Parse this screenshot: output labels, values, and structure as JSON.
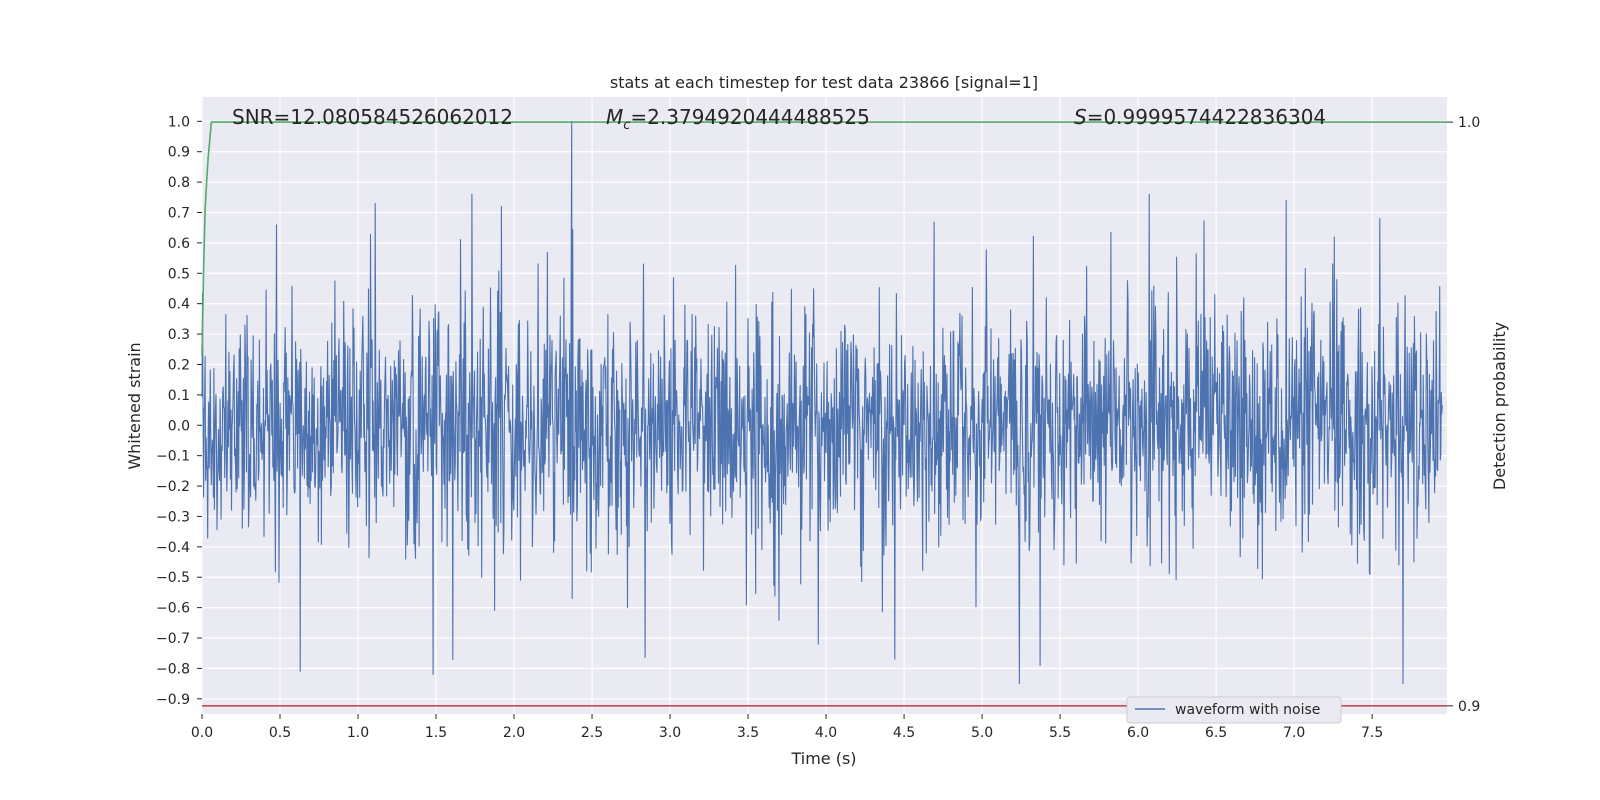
{
  "chart_data": {
    "type": "line",
    "title": "stats at each timestep for test data 23866 [signal=1]",
    "xlabel": "Time (s)",
    "ylabel": "Whitened strain",
    "ylabel_right": "Detection probability",
    "xlim": [
      0.0,
      7.98
    ],
    "ylim": [
      -0.95,
      1.08
    ],
    "ylim_right": [
      0.8986,
      1.0043
    ],
    "x_ticks": [
      "0.0",
      "0.5",
      "1.0",
      "1.5",
      "2.0",
      "2.5",
      "3.0",
      "3.5",
      "4.0",
      "4.5",
      "5.0",
      "5.5",
      "6.0",
      "6.5",
      "7.0",
      "7.5"
    ],
    "y_ticks": [
      "1.0",
      "0.9",
      "0.8",
      "0.7",
      "0.6",
      "0.5",
      "0.4",
      "0.3",
      "0.2",
      "0.1",
      "0.0",
      "−0.1",
      "−0.2",
      "−0.3",
      "−0.4",
      "−0.5",
      "−0.6",
      "−0.7",
      "−0.8",
      "−0.9"
    ],
    "y_ticks_right": [
      "1.0",
      "0.9"
    ],
    "grid": true,
    "legend": {
      "placement": "lower-right",
      "entries": [
        "waveform with noise"
      ]
    },
    "annotations": {
      "snr": "SNR=12.080584526062012",
      "mc_symbol": "M",
      "mc_sub": "c",
      "mc_value": "=2.3794920444488525",
      "s_symbol": "S",
      "s_value": "=0.9999574422836304"
    },
    "series": [
      {
        "name": "waveform with noise",
        "axis": "left",
        "color": "#4c72b0",
        "kind": "noise",
        "sample_count": 2400,
        "envelope": [
          -0.9,
          1.0
        ],
        "notable_peaks": [
          {
            "x": 2.37,
            "y": 1.0
          },
          {
            "x": 5.24,
            "y": -0.85
          },
          {
            "x": 1.48,
            "y": -0.82
          },
          {
            "x": 0.63,
            "y": -0.81
          },
          {
            "x": 4.44,
            "y": -0.77
          },
          {
            "x": 3.95,
            "y": -0.72
          },
          {
            "x": 1.73,
            "y": 0.76
          },
          {
            "x": 6.95,
            "y": 0.74
          },
          {
            "x": 1.11,
            "y": 0.73
          },
          {
            "x": 6.07,
            "y": 0.76
          }
        ]
      },
      {
        "name": "",
        "axis": "right",
        "color": "#55a868",
        "x": [
          0.0,
          0.01,
          0.02,
          0.03,
          0.04,
          0.05,
          0.06,
          0.08,
          7.98
        ],
        "y": [
          0.96,
          0.975,
          0.985,
          0.99,
          0.994,
          0.997,
          1.0,
          1.0,
          1.0
        ]
      },
      {
        "name": "",
        "axis": "right",
        "color": "#c44e52",
        "x": [
          0.0,
          7.98
        ],
        "y": [
          0.9,
          0.9
        ]
      }
    ]
  }
}
